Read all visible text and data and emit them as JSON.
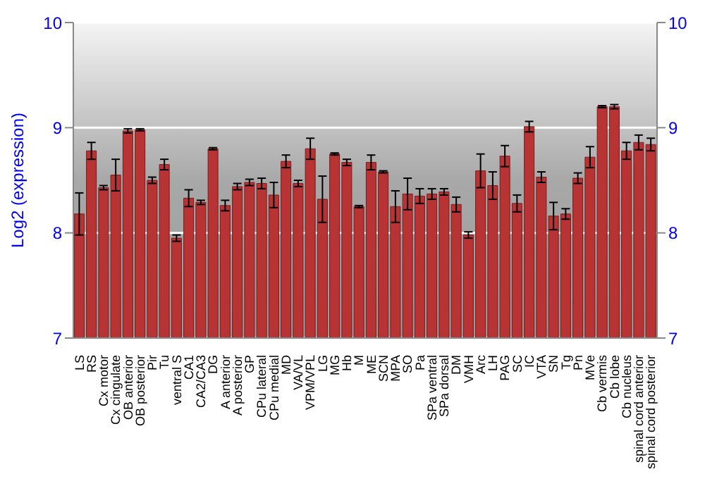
{
  "chart_data": {
    "type": "bar",
    "ylabel": "Log2 (expression)",
    "categories": [
      "LS",
      "RS",
      "Cx motor",
      "Cx cingulate",
      "OB anterior",
      "OB posterior",
      "Pir",
      "Tu",
      "ventral S",
      "CA1",
      "CA2/CA3",
      "DG",
      "A anterior",
      "A posterior",
      "GP",
      "CPu lateral",
      "CPu medial",
      "MD",
      "VA/VL",
      "VPM/VPL",
      "LG",
      "MG",
      "Hb",
      "M",
      "ME",
      "SCN",
      "MPA",
      "SO",
      "Pa",
      "SPa ventral",
      "SPa dorsal",
      "DM",
      "VMH",
      "Arc",
      "LH",
      "PAG",
      "SC",
      "IC",
      "VTA",
      "SN",
      "Tg",
      "Pn",
      "MVe",
      "Cb vermis",
      "Cb lobe",
      "Cb nucleus",
      "spinal cord anterior",
      "spinal cord posterior"
    ],
    "values": [
      8.18,
      8.78,
      8.43,
      8.55,
      8.97,
      8.98,
      8.5,
      8.65,
      7.95,
      8.33,
      8.29,
      8.8,
      8.26,
      8.44,
      8.48,
      8.47,
      8.36,
      8.68,
      8.47,
      8.8,
      8.32,
      8.75,
      8.67,
      8.25,
      8.67,
      8.58,
      8.25,
      8.37,
      8.35,
      8.37,
      8.39,
      8.27,
      7.98,
      8.59,
      8.45,
      8.73,
      8.28,
      9.01,
      8.53,
      8.16,
      8.18,
      8.52,
      8.72,
      9.2,
      9.2,
      8.78,
      8.86,
      8.84
    ],
    "errors": [
      0.2,
      0.08,
      0.02,
      0.15,
      0.02,
      0.01,
      0.03,
      0.05,
      0.03,
      0.08,
      0.02,
      0.01,
      0.05,
      0.03,
      0.03,
      0.05,
      0.12,
      0.06,
      0.03,
      0.1,
      0.22,
      0.01,
      0.03,
      0.01,
      0.07,
      0.01,
      0.15,
      0.15,
      0.07,
      0.05,
      0.03,
      0.07,
      0.03,
      0.16,
      0.13,
      0.1,
      0.08,
      0.05,
      0.05,
      0.13,
      0.05,
      0.05,
      0.1,
      0.01,
      0.02,
      0.08,
      0.07,
      0.06
    ],
    "color": "#b83434",
    "ylim": [
      7,
      10
    ],
    "yticks": [
      7,
      8,
      9,
      10
    ],
    "y2lim": [
      7,
      10
    ],
    "y2ticks": [
      7,
      8,
      9,
      10
    ],
    "grid": "y"
  }
}
